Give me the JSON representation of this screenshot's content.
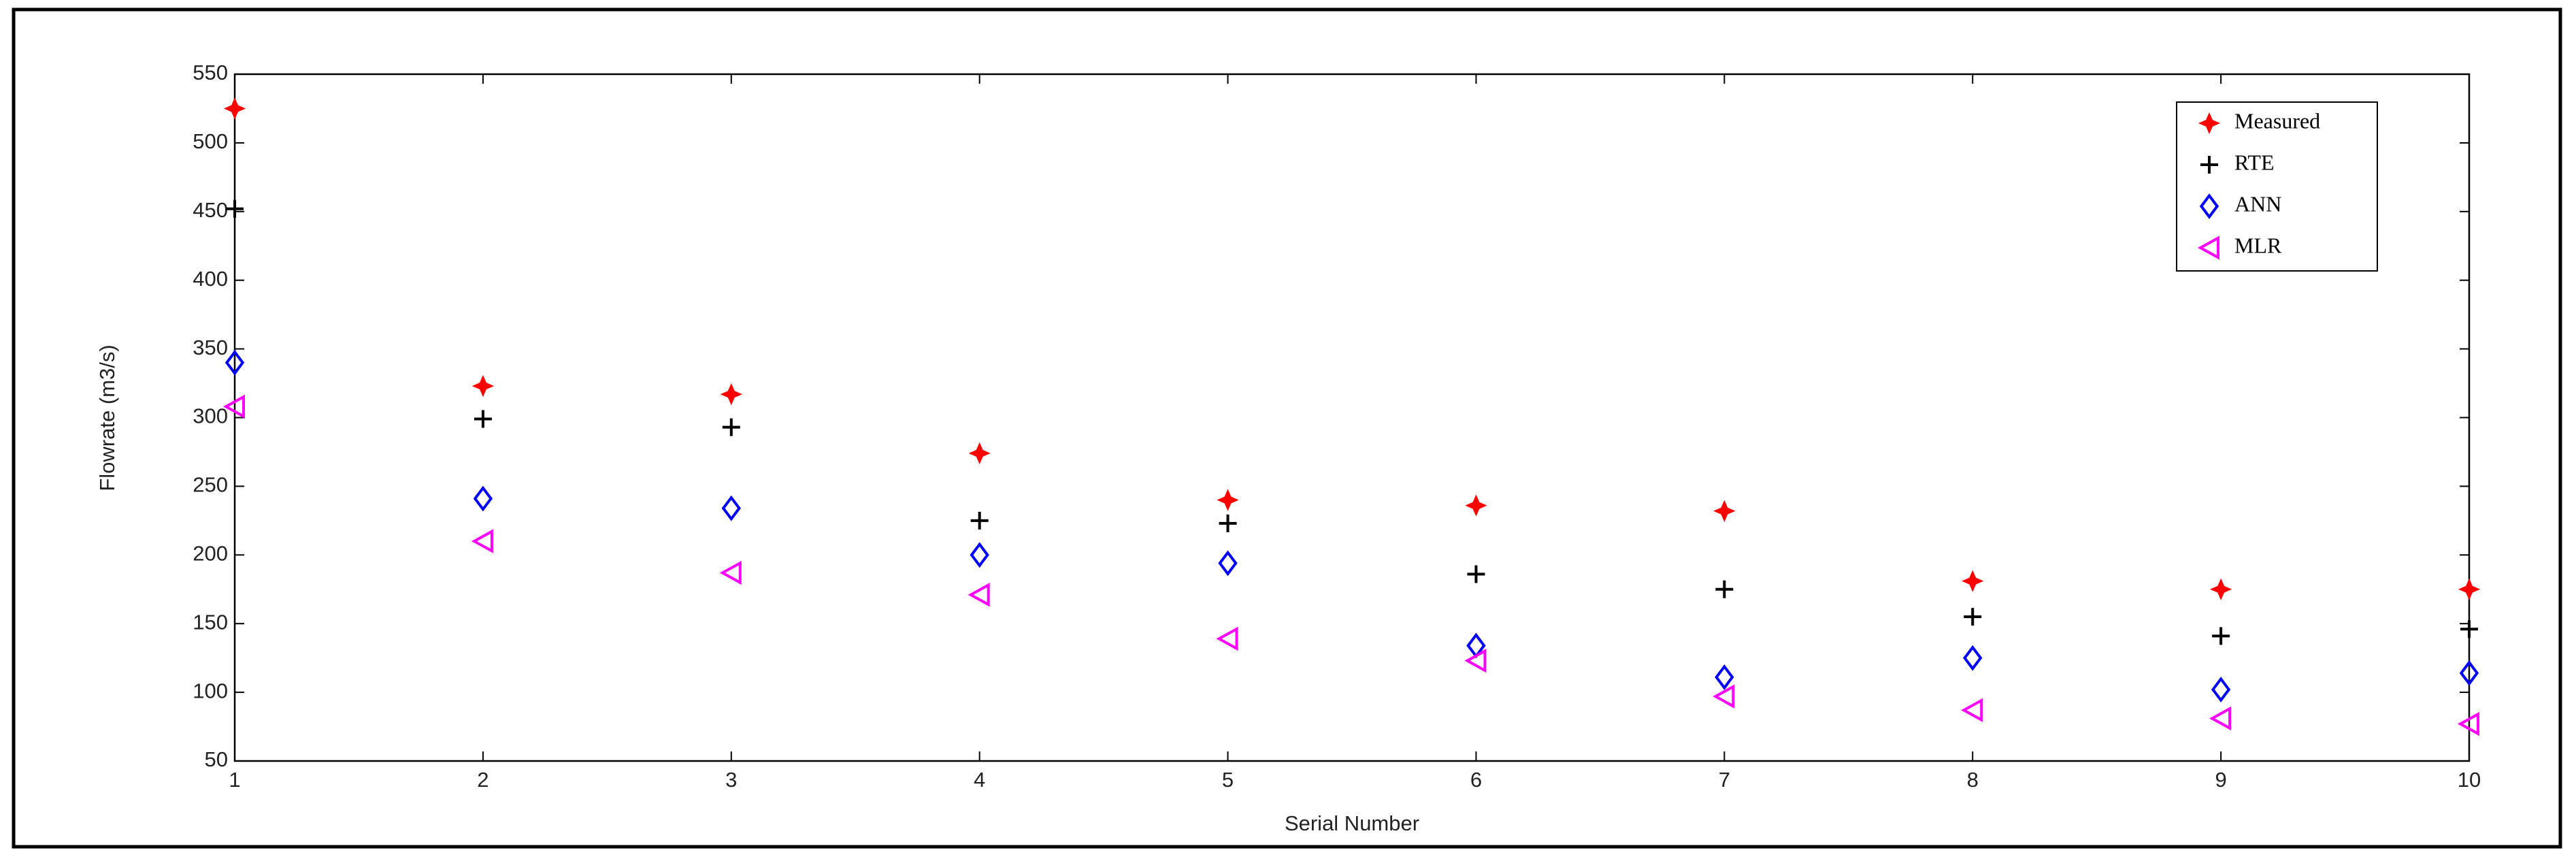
{
  "chart_data": {
    "type": "scatter",
    "x_label": "Serial Number",
    "y_label": "Flowrate  (m3/s)",
    "x": [
      1,
      2,
      3,
      4,
      5,
      6,
      7,
      8,
      9,
      10
    ],
    "series": [
      {
        "name": "Measured",
        "color": "#ff0000",
        "marker": "star",
        "values": [
          525,
          323,
          317,
          274,
          240,
          236,
          232,
          181,
          175,
          175
        ]
      },
      {
        "name": "RTE",
        "color": "#000000",
        "marker": "plus",
        "values": [
          452,
          299,
          293,
          225,
          223,
          186,
          175,
          155,
          141,
          146
        ]
      },
      {
        "name": "ANN",
        "color": "#0000ff",
        "marker": "diamond",
        "values": [
          340,
          241,
          234,
          200,
          194,
          134,
          111,
          125,
          102,
          114
        ]
      },
      {
        "name": "MLR",
        "color": "#ff00ff",
        "marker": "triangle-left",
        "values": [
          308,
          210,
          187,
          171,
          139,
          123,
          97,
          87,
          81,
          77
        ]
      }
    ],
    "xlim": [
      1,
      10
    ],
    "xticks": [
      1,
      2,
      3,
      4,
      5,
      6,
      7,
      8,
      9,
      10
    ],
    "ylim": [
      50,
      550
    ],
    "yticks": [
      50,
      100,
      150,
      200,
      250,
      300,
      350,
      400,
      450,
      500,
      550
    ],
    "legend": "upper right"
  }
}
